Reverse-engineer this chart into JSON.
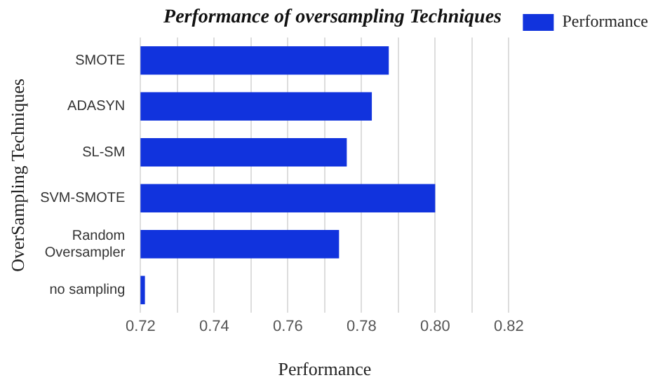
{
  "chart_data": {
    "type": "bar",
    "orientation": "horizontal",
    "title": "Performance of oversampling Techniques",
    "xlabel": "Performance",
    "ylabel": "OverSampling Techniques",
    "categories": [
      "SMOTE",
      "ADASYN",
      "SL-SM",
      "SVM-SMOTE",
      "Random Oversampler",
      "no sampling"
    ],
    "series": [
      {
        "name": "Performance",
        "color": "#1133dd",
        "values": [
          0.7874,
          0.7828,
          0.776,
          0.8,
          0.7739,
          0.7212
        ]
      }
    ],
    "xlim": [
      0.72,
      0.82
    ],
    "xticks": [
      0.72,
      {
        "value": 0.73,
        "label": null
      },
      0.74,
      {
        "value": 0.75,
        "label": null
      },
      0.76,
      {
        "value": 0.77,
        "label": null
      },
      0.78,
      {
        "value": 0.79,
        "label": null
      },
      {
        "value": 0.8,
        "label": "0.80"
      },
      {
        "value": 0.81,
        "label": null
      },
      0.82
    ],
    "grid": "x",
    "legend": "top right"
  }
}
